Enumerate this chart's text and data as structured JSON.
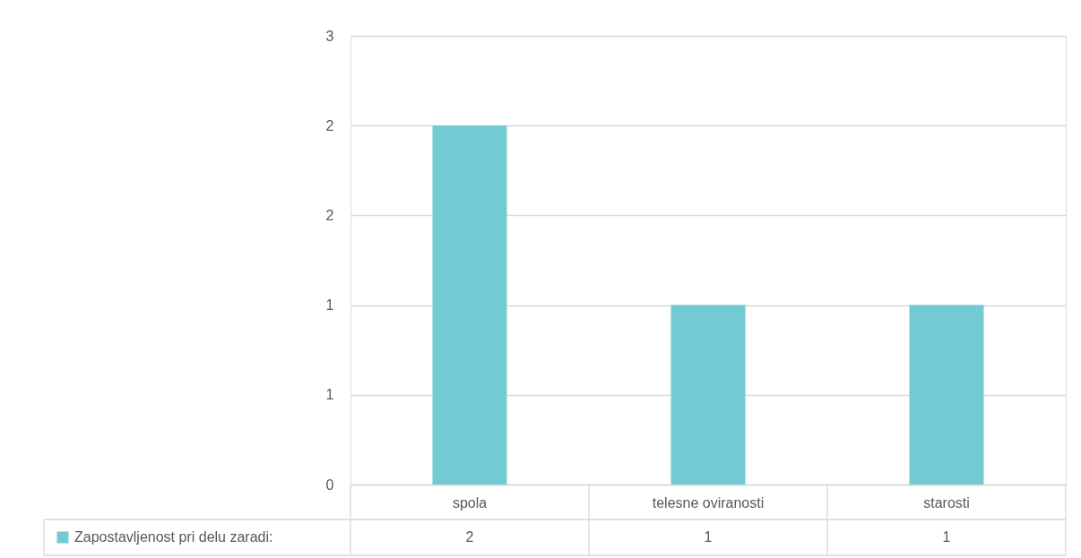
{
  "chart_data": {
    "type": "bar",
    "categories": [
      "spola",
      "telesne oviranosti",
      "starosti"
    ],
    "series": [
      {
        "name": "Zapostavljenost pri delu zaradi:",
        "color": "#72cbd3",
        "values": [
          2,
          1,
          1
        ]
      }
    ],
    "ylim": [
      0,
      2.5
    ],
    "yticks": [
      0,
      {
        "value": 0.5,
        "label": "1"
      },
      1,
      {
        "value": 1.5,
        "label": "2"
      },
      2,
      {
        "value": 2.5,
        "label": "3"
      }
    ],
    "grid": "y",
    "legend": "bottom",
    "data_labels": true
  }
}
